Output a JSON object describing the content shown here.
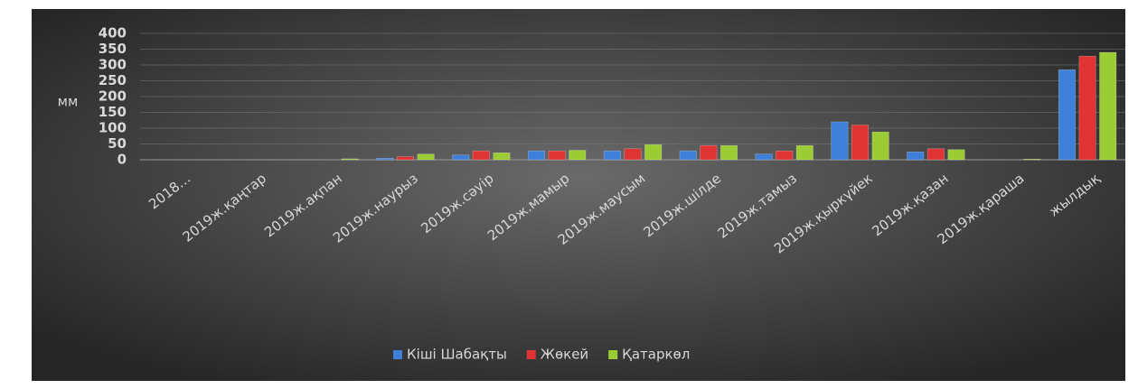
{
  "chart_data": {
    "type": "bar",
    "y_label": "мм",
    "categories": [
      "2018…",
      "2019ж.қаңтар",
      "2019ж.ақпан",
      "2019ж.наурыз",
      "2019ж.сәуір",
      "2019ж.мамыр",
      "2019ж.маусым",
      "2019ж.шілде",
      "2019ж.тамыз",
      "2019ж.қыркүйек",
      "2019ж.қазан",
      "2019ж.қараша",
      "жылдық"
    ],
    "series": [
      {
        "name": "Кіші Шабақты",
        "color": "#3d7fd9",
        "values": [
          0,
          0,
          0,
          5,
          15,
          28,
          28,
          28,
          18,
          120,
          25,
          0,
          285
        ]
      },
      {
        "name": "Жөкей",
        "color": "#e03434",
        "values": [
          0,
          0,
          0,
          10,
          28,
          28,
          35,
          45,
          28,
          110,
          35,
          0,
          328
        ]
      },
      {
        "name": "Қатаркөл",
        "color": "#9ccc34",
        "values": [
          0,
          0,
          3,
          18,
          22,
          30,
          48,
          45,
          45,
          88,
          32,
          2,
          340
        ]
      }
    ],
    "ylim": [
      0,
      400
    ],
    "yticks": [
      0,
      50,
      100,
      150,
      200,
      250,
      300,
      350,
      400
    ],
    "grid": true,
    "legend": "bottom"
  }
}
